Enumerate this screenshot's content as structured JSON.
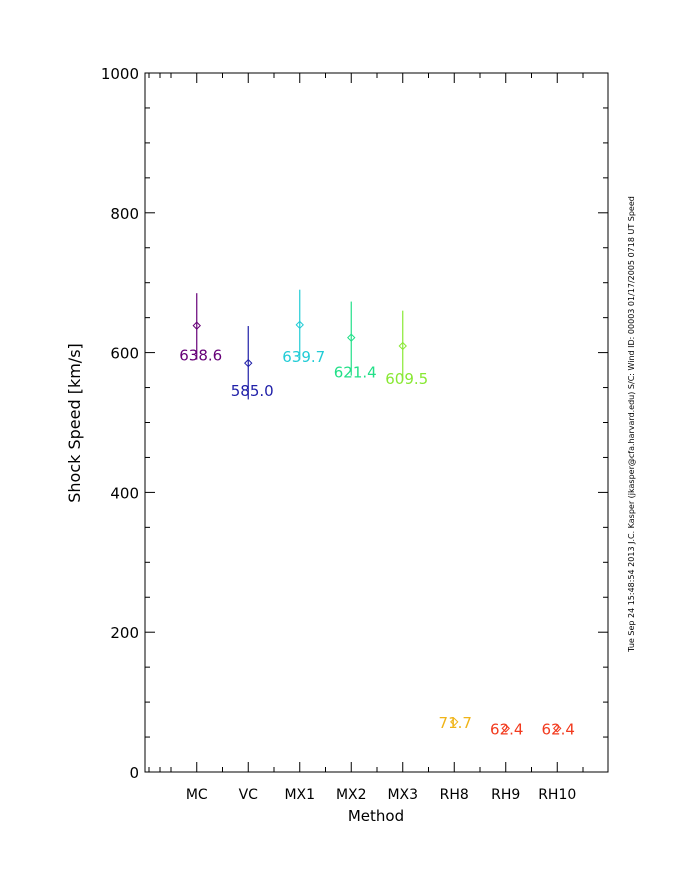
{
  "chart_data": {
    "type": "scatter",
    "xlabel": "Method",
    "ylabel": "Shock Speed [km/s]",
    "categories": [
      "MC",
      "VC",
      "MX1",
      "MX2",
      "MX3",
      "RH8",
      "RH9",
      "RH10"
    ],
    "ylim": [
      0,
      1000
    ],
    "yticks": [
      0,
      200,
      400,
      600,
      800,
      1000
    ],
    "points": [
      {
        "category": "MC",
        "value": 638.6,
        "err_low": 590,
        "err_high": 685,
        "label": "638.6",
        "color": "#660077"
      },
      {
        "category": "VC",
        "value": 585.0,
        "err_low": 533,
        "err_high": 638,
        "label": "585.0",
        "color": "#1f1fa8"
      },
      {
        "category": "MX1",
        "value": 639.7,
        "err_low": 590,
        "err_high": 690,
        "label": "639.7",
        "color": "#22ccd6"
      },
      {
        "category": "MX2",
        "value": 621.4,
        "err_low": 567,
        "err_high": 673,
        "label": "621.4",
        "color": "#22e088"
      },
      {
        "category": "MX3",
        "value": 609.5,
        "err_low": 560,
        "err_high": 660,
        "label": "609.5",
        "color": "#88e833"
      },
      {
        "category": "RH8",
        "value": 71.7,
        "label": "71.7",
        "color": "#f0b418"
      },
      {
        "category": "RH9",
        "value": 62.4,
        "label": "62.4",
        "color": "#f23a1e"
      },
      {
        "category": "RH10",
        "value": 62.4,
        "label": "62.4",
        "color": "#f23a1e"
      }
    ],
    "side_note": "Tue Sep 24 15:48:54 2013   J.C. Kasper (jkasper@cfa.harvard.edu)   S/C: Wind ID: 00003 01/17/2005  0718 UT Speed",
    "grid": false,
    "legend": "none"
  }
}
